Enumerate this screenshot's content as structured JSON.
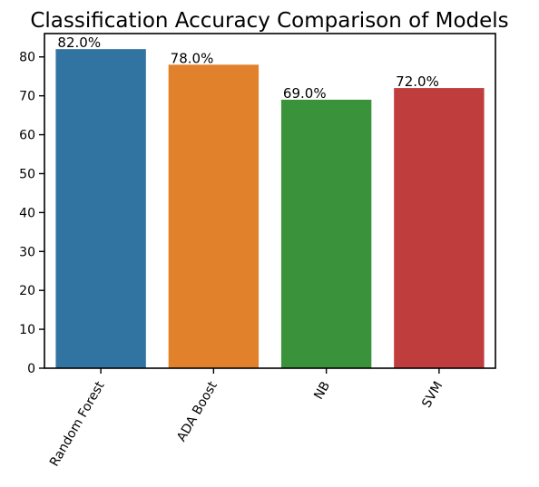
{
  "chart_data": {
    "type": "bar",
    "title": "Classification Accuracy Comparison of Models",
    "xlabel": "",
    "ylabel": "",
    "categories": [
      "Random Forest",
      "ADA Boost",
      "NB",
      "SVM"
    ],
    "values": [
      82.0,
      78.0,
      69.0,
      72.0
    ],
    "data_labels": [
      "82.0%",
      "78.0%",
      "69.0%",
      "72.0%"
    ],
    "colors": [
      "#3274a1",
      "#e1812c",
      "#3a923a",
      "#c03d3e"
    ],
    "ylim": [
      0,
      86
    ],
    "yticks": [
      0,
      10,
      20,
      30,
      40,
      50,
      60,
      70,
      80
    ],
    "grid": false,
    "legend": "none"
  }
}
